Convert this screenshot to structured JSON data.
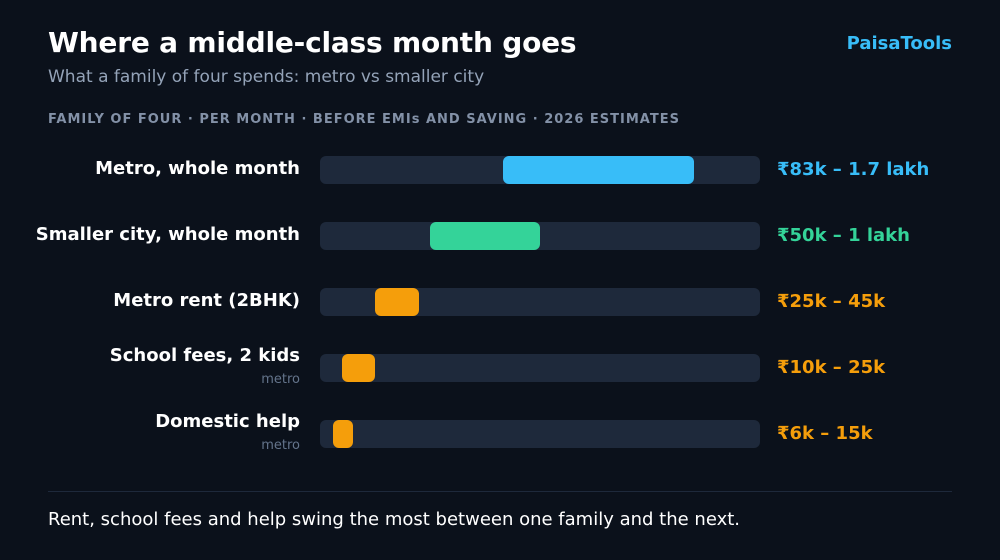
{
  "header": {
    "title": "Where a middle-class month goes",
    "subtitle": "What a family of four spends: metro vs smaller city",
    "brand": "PaisaTools",
    "kicker": "FAMILY OF FOUR · PER MONTH · BEFORE EMIs AND SAVING · 2026 ESTIMATES"
  },
  "chart_data": {
    "type": "bar",
    "orientation": "horizontal-range",
    "unit": "₹ per month",
    "xlim": [
      0,
      200000
    ],
    "bars": [
      {
        "label": "Metro, whole month",
        "sublabel": "",
        "low": 83000,
        "high": 170000,
        "value_label": "₹83k – 1.7 lakh",
        "color": "#38bdf8"
      },
      {
        "label": "Smaller city, whole month",
        "sublabel": "",
        "low": 50000,
        "high": 100000,
        "value_label": "₹50k – 1 lakh",
        "color": "#34d399"
      },
      {
        "label": "Metro rent (2BHK)",
        "sublabel": "",
        "low": 25000,
        "high": 45000,
        "value_label": "₹25k – 45k",
        "color": "#f59e0b"
      },
      {
        "label": "School fees, 2 kids",
        "sublabel": "metro",
        "low": 10000,
        "high": 25000,
        "value_label": "₹10k – 25k",
        "color": "#f59e0b"
      },
      {
        "label": "Domestic help",
        "sublabel": "metro",
        "low": 6000,
        "high": 15000,
        "value_label": "₹6k – 15k",
        "color": "#f59e0b"
      }
    ]
  },
  "footer": {
    "note": "Rent, school fees and help swing the most between one family and the next."
  }
}
